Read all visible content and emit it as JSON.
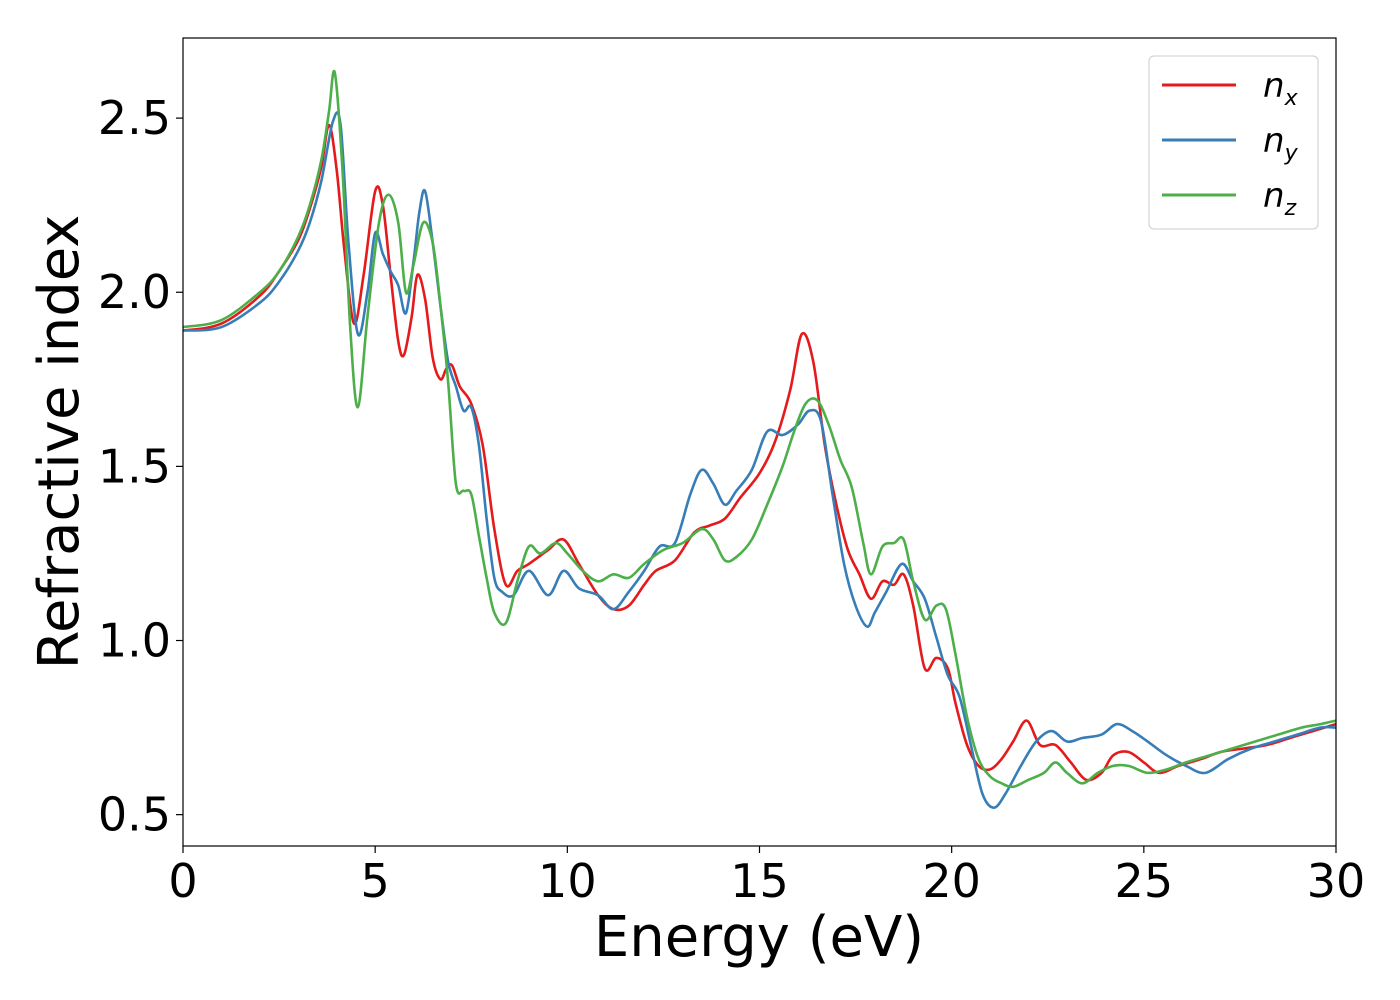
{
  "chart_data": {
    "type": "line",
    "xlabel": "Energy (eV)",
    "ylabel": "Refractive index",
    "xlim": [
      0,
      30
    ],
    "ylim": [
      0.41,
      2.73
    ],
    "xticks": [
      0,
      5,
      10,
      15,
      20,
      25,
      30
    ],
    "xtick_labels": [
      "0",
      "5",
      "10",
      "15",
      "20",
      "25",
      "30"
    ],
    "yticks": [
      0.5,
      1.0,
      1.5,
      2.0,
      2.5
    ],
    "ytick_labels": [
      "0.5",
      "1.0",
      "1.5",
      "2.0",
      "2.5"
    ],
    "grid": false,
    "legend_position": "top-right",
    "series": [
      {
        "name": "n_x",
        "legend_base": "n",
        "legend_sub": "x",
        "color": "#e41a1c",
        "x": [
          0,
          1,
          2,
          2.5,
          3,
          3.3,
          3.6,
          3.8,
          4.0,
          4.2,
          4.45,
          4.7,
          5.0,
          5.2,
          5.4,
          5.6,
          5.75,
          5.95,
          6.1,
          6.3,
          6.5,
          6.7,
          6.85,
          7.0,
          7.2,
          7.5,
          7.8,
          8.1,
          8.4,
          8.7,
          9.0,
          9.5,
          9.9,
          10.3,
          10.8,
          11.2,
          11.6,
          12.0,
          12.3,
          12.8,
          13.3,
          13.7,
          14.1,
          14.5,
          15.0,
          15.4,
          15.8,
          16.1,
          16.4,
          16.7,
          17.0,
          17.3,
          17.6,
          17.9,
          18.2,
          18.5,
          18.75,
          19.0,
          19.3,
          19.6,
          19.9,
          20.1,
          20.4,
          20.7,
          21.0,
          21.3,
          21.6,
          21.95,
          22.3,
          22.7,
          23.1,
          23.5,
          23.9,
          24.2,
          24.6,
          25.0,
          25.4,
          25.9,
          26.5,
          27.0,
          27.6,
          28.2,
          28.8,
          29.4,
          30.0
        ],
        "y": [
          1.89,
          1.91,
          1.99,
          2.06,
          2.15,
          2.24,
          2.36,
          2.48,
          2.35,
          2.12,
          1.91,
          2.05,
          2.29,
          2.25,
          2.05,
          1.86,
          1.82,
          1.93,
          2.05,
          1.98,
          1.81,
          1.75,
          1.78,
          1.79,
          1.73,
          1.68,
          1.56,
          1.32,
          1.16,
          1.2,
          1.22,
          1.26,
          1.29,
          1.22,
          1.13,
          1.09,
          1.1,
          1.16,
          1.2,
          1.23,
          1.31,
          1.33,
          1.35,
          1.41,
          1.48,
          1.57,
          1.72,
          1.88,
          1.8,
          1.56,
          1.39,
          1.26,
          1.19,
          1.12,
          1.17,
          1.16,
          1.19,
          1.1,
          0.92,
          0.95,
          0.92,
          0.82,
          0.7,
          0.64,
          0.63,
          0.66,
          0.71,
          0.77,
          0.7,
          0.7,
          0.65,
          0.6,
          0.62,
          0.67,
          0.68,
          0.65,
          0.62,
          0.64,
          0.66,
          0.68,
          0.69,
          0.7,
          0.72,
          0.74,
          0.76
        ]
      },
      {
        "name": "n_y",
        "legend_base": "n",
        "legend_sub": "y",
        "color": "#377eb8",
        "x": [
          0,
          1,
          2,
          2.5,
          3,
          3.3,
          3.6,
          3.9,
          4.1,
          4.3,
          4.55,
          4.8,
          5.0,
          5.2,
          5.4,
          5.6,
          5.8,
          6.0,
          6.15,
          6.3,
          6.5,
          6.7,
          6.9,
          7.1,
          7.3,
          7.5,
          7.7,
          7.9,
          8.1,
          8.3,
          8.6,
          9.0,
          9.5,
          9.9,
          10.3,
          10.8,
          11.2,
          11.6,
          12.0,
          12.4,
          12.8,
          13.2,
          13.5,
          13.8,
          14.1,
          14.4,
          14.8,
          15.2,
          15.6,
          16.0,
          16.3,
          16.6,
          16.9,
          17.2,
          17.5,
          17.8,
          18.0,
          18.3,
          18.7,
          19.0,
          19.3,
          19.6,
          19.9,
          20.2,
          20.5,
          20.8,
          21.1,
          21.4,
          21.8,
          22.2,
          22.6,
          23.0,
          23.4,
          23.9,
          24.3,
          24.7,
          25.1,
          25.6,
          26.1,
          26.6,
          27.2,
          27.8,
          28.4,
          29.0,
          29.6,
          30.0
        ],
        "y": [
          1.89,
          1.9,
          1.97,
          2.03,
          2.12,
          2.2,
          2.32,
          2.49,
          2.48,
          2.15,
          1.88,
          2.0,
          2.17,
          2.11,
          2.06,
          2.02,
          1.94,
          2.09,
          2.23,
          2.29,
          2.14,
          1.96,
          1.8,
          1.73,
          1.66,
          1.67,
          1.56,
          1.35,
          1.18,
          1.14,
          1.13,
          1.2,
          1.13,
          1.2,
          1.15,
          1.13,
          1.09,
          1.14,
          1.2,
          1.27,
          1.28,
          1.42,
          1.49,
          1.45,
          1.39,
          1.43,
          1.49,
          1.6,
          1.59,
          1.62,
          1.66,
          1.63,
          1.42,
          1.22,
          1.1,
          1.04,
          1.08,
          1.14,
          1.22,
          1.17,
          1.12,
          1.01,
          0.9,
          0.84,
          0.7,
          0.56,
          0.52,
          0.56,
          0.64,
          0.71,
          0.74,
          0.71,
          0.72,
          0.73,
          0.76,
          0.74,
          0.71,
          0.67,
          0.64,
          0.62,
          0.66,
          0.69,
          0.71,
          0.73,
          0.75,
          0.75
        ]
      },
      {
        "name": "n_z",
        "legend_base": "n",
        "legend_sub": "z",
        "color": "#4daf4a",
        "x": [
          0,
          1,
          2,
          2.5,
          3,
          3.3,
          3.6,
          3.8,
          3.95,
          4.15,
          4.35,
          4.55,
          4.8,
          5.1,
          5.35,
          5.6,
          5.8,
          6.0,
          6.25,
          6.5,
          6.7,
          6.9,
          7.1,
          7.3,
          7.5,
          7.7,
          7.9,
          8.1,
          8.4,
          8.7,
          9.0,
          9.3,
          9.7,
          10.0,
          10.4,
          10.8,
          11.2,
          11.6,
          12.0,
          12.5,
          13.0,
          13.5,
          13.8,
          14.1,
          14.4,
          14.8,
          15.2,
          15.6,
          15.9,
          16.2,
          16.5,
          16.8,
          17.1,
          17.4,
          17.7,
          17.9,
          18.2,
          18.5,
          18.75,
          19.0,
          19.3,
          19.6,
          19.85,
          20.1,
          20.4,
          20.7,
          21.0,
          21.3,
          21.6,
          22.0,
          22.4,
          22.7,
          23.0,
          23.4,
          23.8,
          24.2,
          24.6,
          25.1,
          25.6,
          26.1,
          26.7,
          27.3,
          27.9,
          28.5,
          29.1,
          29.6,
          30.0
        ],
        "y": [
          1.9,
          1.92,
          2.0,
          2.06,
          2.16,
          2.25,
          2.38,
          2.52,
          2.63,
          2.35,
          1.9,
          1.67,
          1.93,
          2.2,
          2.28,
          2.2,
          2.0,
          2.08,
          2.2,
          2.14,
          1.96,
          1.74,
          1.45,
          1.43,
          1.42,
          1.3,
          1.18,
          1.08,
          1.05,
          1.17,
          1.27,
          1.25,
          1.28,
          1.25,
          1.2,
          1.17,
          1.19,
          1.18,
          1.22,
          1.26,
          1.28,
          1.32,
          1.29,
          1.23,
          1.24,
          1.29,
          1.39,
          1.5,
          1.6,
          1.68,
          1.69,
          1.62,
          1.52,
          1.44,
          1.28,
          1.19,
          1.27,
          1.28,
          1.29,
          1.17,
          1.06,
          1.1,
          1.09,
          0.96,
          0.78,
          0.66,
          0.61,
          0.59,
          0.58,
          0.6,
          0.62,
          0.65,
          0.62,
          0.59,
          0.62,
          0.64,
          0.64,
          0.62,
          0.63,
          0.65,
          0.67,
          0.69,
          0.71,
          0.73,
          0.75,
          0.76,
          0.77
        ]
      }
    ]
  }
}
